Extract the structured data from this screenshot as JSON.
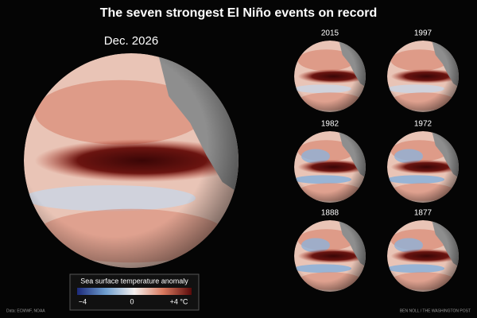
{
  "title": "The seven strongest El Niño events on record",
  "main": {
    "label": "Dec. 2026"
  },
  "events": [
    {
      "label": "2015"
    },
    {
      "label": "1997"
    },
    {
      "label": "1982"
    },
    {
      "label": "1972"
    },
    {
      "label": "1888"
    },
    {
      "label": "1877"
    }
  ],
  "legend": {
    "title": "Sea surface temperature anomaly",
    "ticks": [
      "−4",
      "0",
      "+4 °C"
    ]
  },
  "source": "Data: ECMWF, NOAA",
  "credit": "BEN NOLL / THE WASHINGTON POST"
}
